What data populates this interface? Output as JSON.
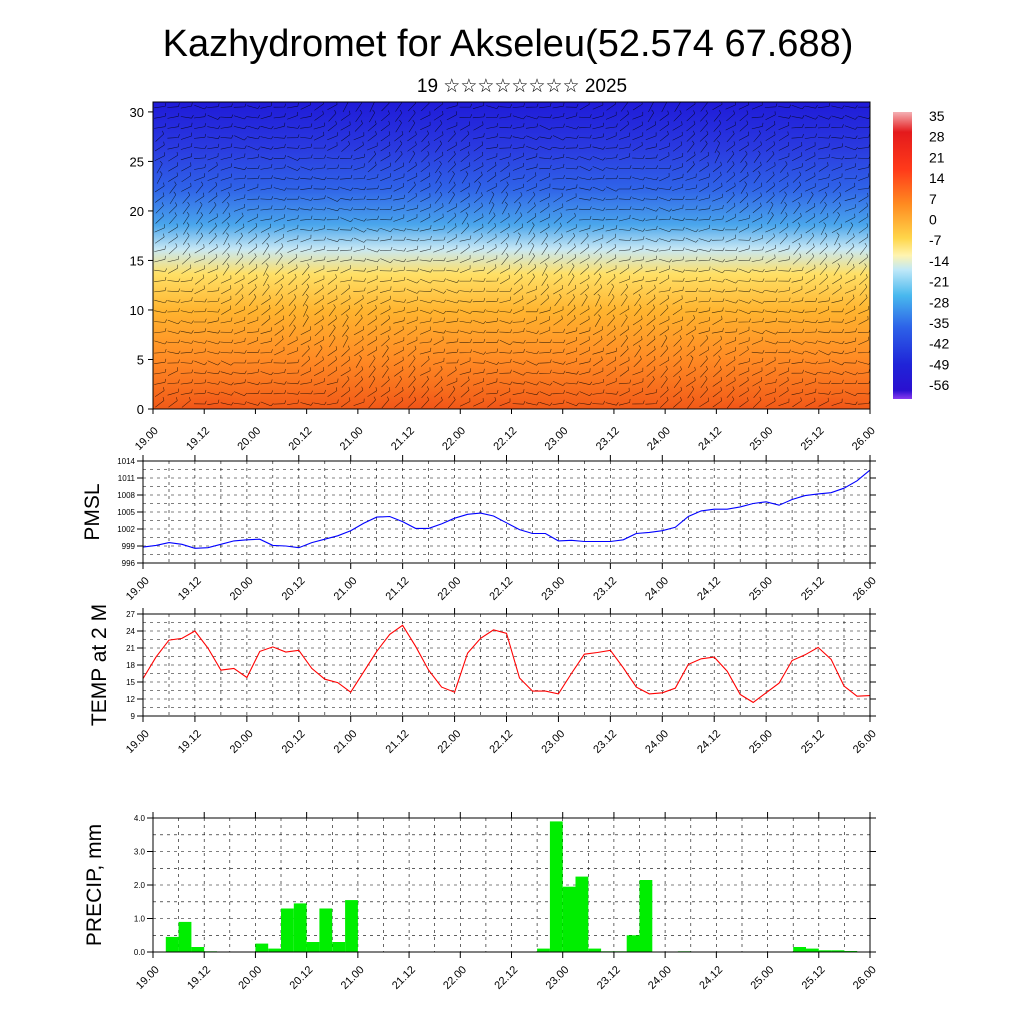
{
  "header": {
    "title": "Kazhydromet for Akseleu(52.574 67.688)",
    "subtitle": "19 ☆☆☆☆☆☆☆☆ 2025"
  },
  "x_ticks": [
    "19.00",
    "19.12",
    "20.00",
    "20.12",
    "21.00",
    "21.12",
    "22.00",
    "22.12",
    "23.00",
    "23.12",
    "24.00",
    "24.12",
    "25.00",
    "25.12",
    "26.00"
  ],
  "colors": {
    "pmsl_line": "#0000ff",
    "temp_line": "#ff0000",
    "precip_bar": "#00ee00",
    "axis": "#000000"
  },
  "chart_data": [
    {
      "type": "heatmap",
      "title": "",
      "ylabel": "",
      "ylim": [
        0,
        31
      ],
      "yticks": [
        "0",
        "5",
        "10",
        "15",
        "20",
        "25",
        "30"
      ],
      "x": [
        "19.00",
        "19.12",
        "20.00",
        "20.12",
        "21.00",
        "21.12",
        "22.00",
        "22.12",
        "23.00",
        "23.12",
        "24.00",
        "24.12",
        "25.00",
        "25.12",
        "26.00"
      ],
      "colorbar": {
        "labels": [
          "35",
          "28",
          "21",
          "14",
          "7",
          "0",
          "-7",
          "-14",
          "-21",
          "-28",
          "-35",
          "-42",
          "-49",
          "-56"
        ],
        "colors": [
          "#f4b0b4",
          "#e41a1c",
          "#ff3a1a",
          "#ff7a1f",
          "#ffb02e",
          "#ffe060",
          "#fff4b0",
          "#bfe8f8",
          "#48b8ee",
          "#2c86ea",
          "#2d52e8",
          "#1f2ad8",
          "#2310d0",
          "#7a2af0"
        ]
      },
      "surface_temp_profile": [
        20,
        23,
        21,
        17,
        19,
        22,
        24,
        23,
        20,
        19,
        18,
        19,
        19,
        18,
        17
      ],
      "has_wind_barbs": true
    },
    {
      "type": "line",
      "ylabel": "PMSL",
      "ylim": [
        996,
        1014
      ],
      "yticks": [
        "996",
        "999",
        "1002",
        "1005",
        "1008",
        "1011",
        "1014"
      ],
      "x": [
        19.0,
        19.125,
        19.25,
        19.375,
        19.5,
        19.625,
        19.75,
        19.875,
        20.0,
        20.125,
        20.25,
        20.375,
        20.5,
        20.625,
        20.75,
        20.875,
        21.0,
        21.125,
        21.25,
        21.375,
        21.5,
        21.625,
        21.75,
        21.875,
        22.0,
        22.125,
        22.25,
        22.375,
        22.5,
        22.625,
        22.75,
        22.875,
        23.0,
        23.125,
        23.25,
        23.375,
        23.5,
        23.625,
        23.75,
        23.875,
        24.0,
        24.125,
        24.25,
        24.375,
        24.5,
        24.625,
        24.75,
        24.875,
        25.0,
        25.125,
        25.25,
        25.375,
        25.5,
        25.625,
        25.75,
        25.875,
        26.0
      ],
      "series": [
        {
          "values": [
            998.8,
            999.1,
            999.6,
            999.3,
            998.6,
            998.7,
            999.3,
            999.9,
            1000.1,
            1000.2,
            999.1,
            999.0,
            998.7,
            999.6,
            1000.2,
            1000.8,
            1001.7,
            1003.0,
            1004.1,
            1004.2,
            1003.3,
            1002.1,
            1002.1,
            1002.9,
            1003.9,
            1004.6,
            1004.8,
            1004.3,
            1003.1,
            1001.9,
            1001.2,
            1001.2,
            999.9,
            1000.0,
            999.8,
            999.8,
            999.8,
            1000.1,
            1001.2,
            1001.4,
            1001.7,
            1002.3,
            1004.2,
            1005.2,
            1005.5,
            1005.5,
            1005.9,
            1006.5,
            1006.8,
            1006.2,
            1007.2,
            1007.9,
            1008.2,
            1008.4,
            1009.2,
            1010.5,
            1012.4
          ]
        }
      ]
    },
    {
      "type": "line",
      "ylabel": "TEMP at 2 M",
      "ylim": [
        9,
        27
      ],
      "yticks": [
        "9",
        "12",
        "15",
        "18",
        "21",
        "24",
        "27"
      ],
      "x": [
        19.0,
        19.125,
        19.25,
        19.375,
        19.5,
        19.625,
        19.75,
        19.875,
        20.0,
        20.125,
        20.25,
        20.375,
        20.5,
        20.625,
        20.75,
        20.875,
        21.0,
        21.125,
        21.25,
        21.375,
        21.5,
        21.625,
        21.75,
        21.875,
        22.0,
        22.125,
        22.25,
        22.375,
        22.5,
        22.625,
        22.75,
        22.875,
        23.0,
        23.125,
        23.25,
        23.375,
        23.5,
        23.625,
        23.75,
        23.875,
        24.0,
        24.125,
        24.25,
        24.375,
        24.5,
        24.625,
        24.75,
        24.875,
        25.0,
        25.125,
        25.25,
        25.375,
        25.5,
        25.625,
        25.75,
        25.875,
        26.0
      ],
      "series": [
        {
          "values": [
            15.6,
            19.4,
            22.4,
            22.7,
            24.0,
            21.0,
            17.1,
            17.4,
            15.8,
            20.4,
            21.2,
            20.3,
            20.6,
            17.4,
            15.5,
            14.9,
            13.2,
            16.8,
            20.4,
            23.4,
            25.0,
            21.3,
            17.1,
            14.1,
            13.2,
            20.1,
            22.7,
            24.2,
            23.6,
            15.7,
            13.4,
            13.4,
            12.9,
            16.5,
            19.9,
            20.2,
            20.6,
            17.5,
            14.1,
            12.9,
            13.1,
            13.9,
            18.1,
            19.1,
            19.4,
            16.9,
            12.8,
            11.4,
            13.1,
            14.8,
            18.8,
            19.8,
            21.1,
            19.0,
            14.3,
            12.5,
            12.6
          ]
        }
      ]
    },
    {
      "type": "bar",
      "ylabel": "PRECIP, mm",
      "ylim": [
        0,
        4
      ],
      "yticks": [
        "0.0",
        "1.0",
        "2.0",
        "3.0",
        "4.0"
      ],
      "x": [
        19.0,
        19.125,
        19.25,
        19.375,
        19.5,
        19.625,
        19.75,
        19.875,
        20.0,
        20.125,
        20.25,
        20.375,
        20.5,
        20.625,
        20.75,
        20.875,
        21.0,
        21.125,
        21.25,
        21.375,
        21.5,
        21.625,
        21.75,
        21.875,
        22.0,
        22.125,
        22.25,
        22.375,
        22.5,
        22.625,
        22.75,
        22.875,
        23.0,
        23.125,
        23.25,
        23.375,
        23.5,
        23.625,
        23.75,
        23.875,
        24.0,
        24.125,
        24.25,
        24.375,
        24.5,
        24.625,
        24.75,
        24.875,
        25.0,
        25.125,
        25.25,
        25.375,
        25.5,
        25.625,
        25.75,
        25.875
      ],
      "series": [
        {
          "values": [
            0,
            0.45,
            0.9,
            0.15,
            0.02,
            0,
            0,
            0,
            0.25,
            0.1,
            1.3,
            1.45,
            0.3,
            1.3,
            0.3,
            1.55,
            0,
            0,
            0,
            0,
            0,
            0,
            0,
            0,
            0,
            0,
            0,
            0,
            0,
            0,
            0.1,
            3.9,
            1.95,
            2.25,
            0.1,
            0.02,
            0.02,
            0.5,
            2.15,
            0,
            0,
            0.02,
            0,
            0,
            0,
            0,
            0,
            0,
            0,
            0,
            0.15,
            0.1,
            0.05,
            0.05,
            0.03,
            0
          ]
        }
      ]
    }
  ]
}
